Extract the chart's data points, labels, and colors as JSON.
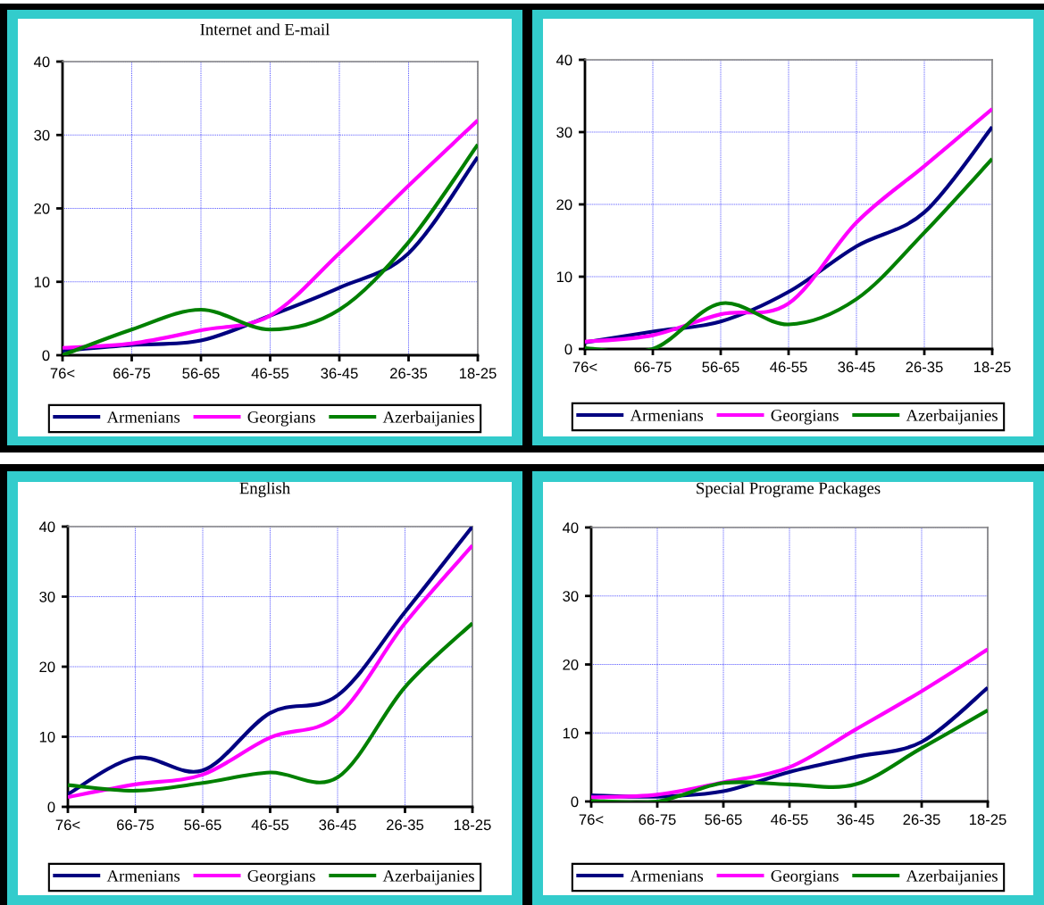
{
  "chart_data": [
    {
      "type": "line",
      "title": "Internet and E-mail",
      "categories": [
        "76<",
        "66-75",
        "56-65",
        "46-55",
        "36-45",
        "26-35",
        "18-25"
      ],
      "series": [
        {
          "name": "Armenians",
          "color": "#000080",
          "values": [
            0.6,
            1.4,
            2.0,
            5.4,
            9.2,
            13.9,
            27.0
          ]
        },
        {
          "name": "Georgians",
          "color": "#ff00ff",
          "values": [
            1.0,
            1.6,
            3.4,
            5.4,
            13.9,
            23.1,
            32.0
          ]
        },
        {
          "name": "Azerbaijanies",
          "color": "#008000",
          "values": [
            0,
            3.5,
            6.2,
            3.5,
            6.2,
            15.4,
            28.7
          ]
        }
      ],
      "ylim": [
        0,
        40
      ],
      "yticks": [
        0,
        10,
        20,
        30,
        40
      ],
      "grid": true,
      "legend": "bottom"
    },
    {
      "type": "line",
      "categories": [
        "76<",
        "66-75",
        "56-65",
        "46-55",
        "36-45",
        "26-35",
        "18-25"
      ],
      "series": [
        {
          "name": "Armenians",
          "color": "#000080",
          "values": [
            0.9,
            2.4,
            3.8,
            7.9,
            14.2,
            18.9,
            30.7
          ]
        },
        {
          "name": "Georgians",
          "color": "#ff00ff",
          "values": [
            1.0,
            1.9,
            4.8,
            6.3,
            17.5,
            25.3,
            33.2
          ]
        },
        {
          "name": "Azerbaijanies",
          "color": "#008000",
          "values": [
            0.1,
            0,
            6.3,
            3.4,
            6.9,
            16.1,
            26.3
          ]
        }
      ],
      "ylim": [
        0,
        40
      ],
      "yticks": [
        0,
        10,
        20,
        30,
        40
      ],
      "grid": true,
      "legend": "bottom"
    },
    {
      "type": "line",
      "title": "English",
      "categories": [
        "76<",
        "66-75",
        "56-65",
        "46-55",
        "36-45",
        "26-35",
        "18-25"
      ],
      "series": [
        {
          "name": "Armenians",
          "color": "#000080",
          "values": [
            1.8,
            7.0,
            5.2,
            13.4,
            15.9,
            27.8,
            40.0
          ]
        },
        {
          "name": "Georgians",
          "color": "#ff00ff",
          "values": [
            1.4,
            3.2,
            4.6,
            9.9,
            13.0,
            26.2,
            37.3
          ]
        },
        {
          "name": "Azerbaijanies",
          "color": "#008000",
          "values": [
            3.1,
            2.3,
            3.4,
            4.9,
            4.2,
            17.1,
            26.2
          ]
        }
      ],
      "ylim": [
        0,
        40
      ],
      "yticks": [
        0,
        10,
        20,
        30,
        40
      ],
      "grid": true,
      "legend": "bottom"
    },
    {
      "type": "line",
      "title": "Special Programe Packages",
      "categories": [
        "76<",
        "66-75",
        "56-65",
        "46-55",
        "36-45",
        "26-35",
        "18-25"
      ],
      "series": [
        {
          "name": "Armenians",
          "color": "#000080",
          "values": [
            0.9,
            0.7,
            1.5,
            4.3,
            6.5,
            8.7,
            16.6
          ]
        },
        {
          "name": "Georgians",
          "color": "#ff00ff",
          "values": [
            0.6,
            1.0,
            2.8,
            5.0,
            10.5,
            16.1,
            22.2
          ]
        },
        {
          "name": "Azerbaijanies",
          "color": "#008000",
          "values": [
            0.1,
            0,
            2.7,
            2.5,
            2.5,
            7.8,
            13.3
          ]
        }
      ],
      "ylim": [
        0,
        40
      ],
      "yticks": [
        0,
        10,
        20,
        30,
        40
      ],
      "grid": true,
      "legend": "bottom"
    }
  ]
}
